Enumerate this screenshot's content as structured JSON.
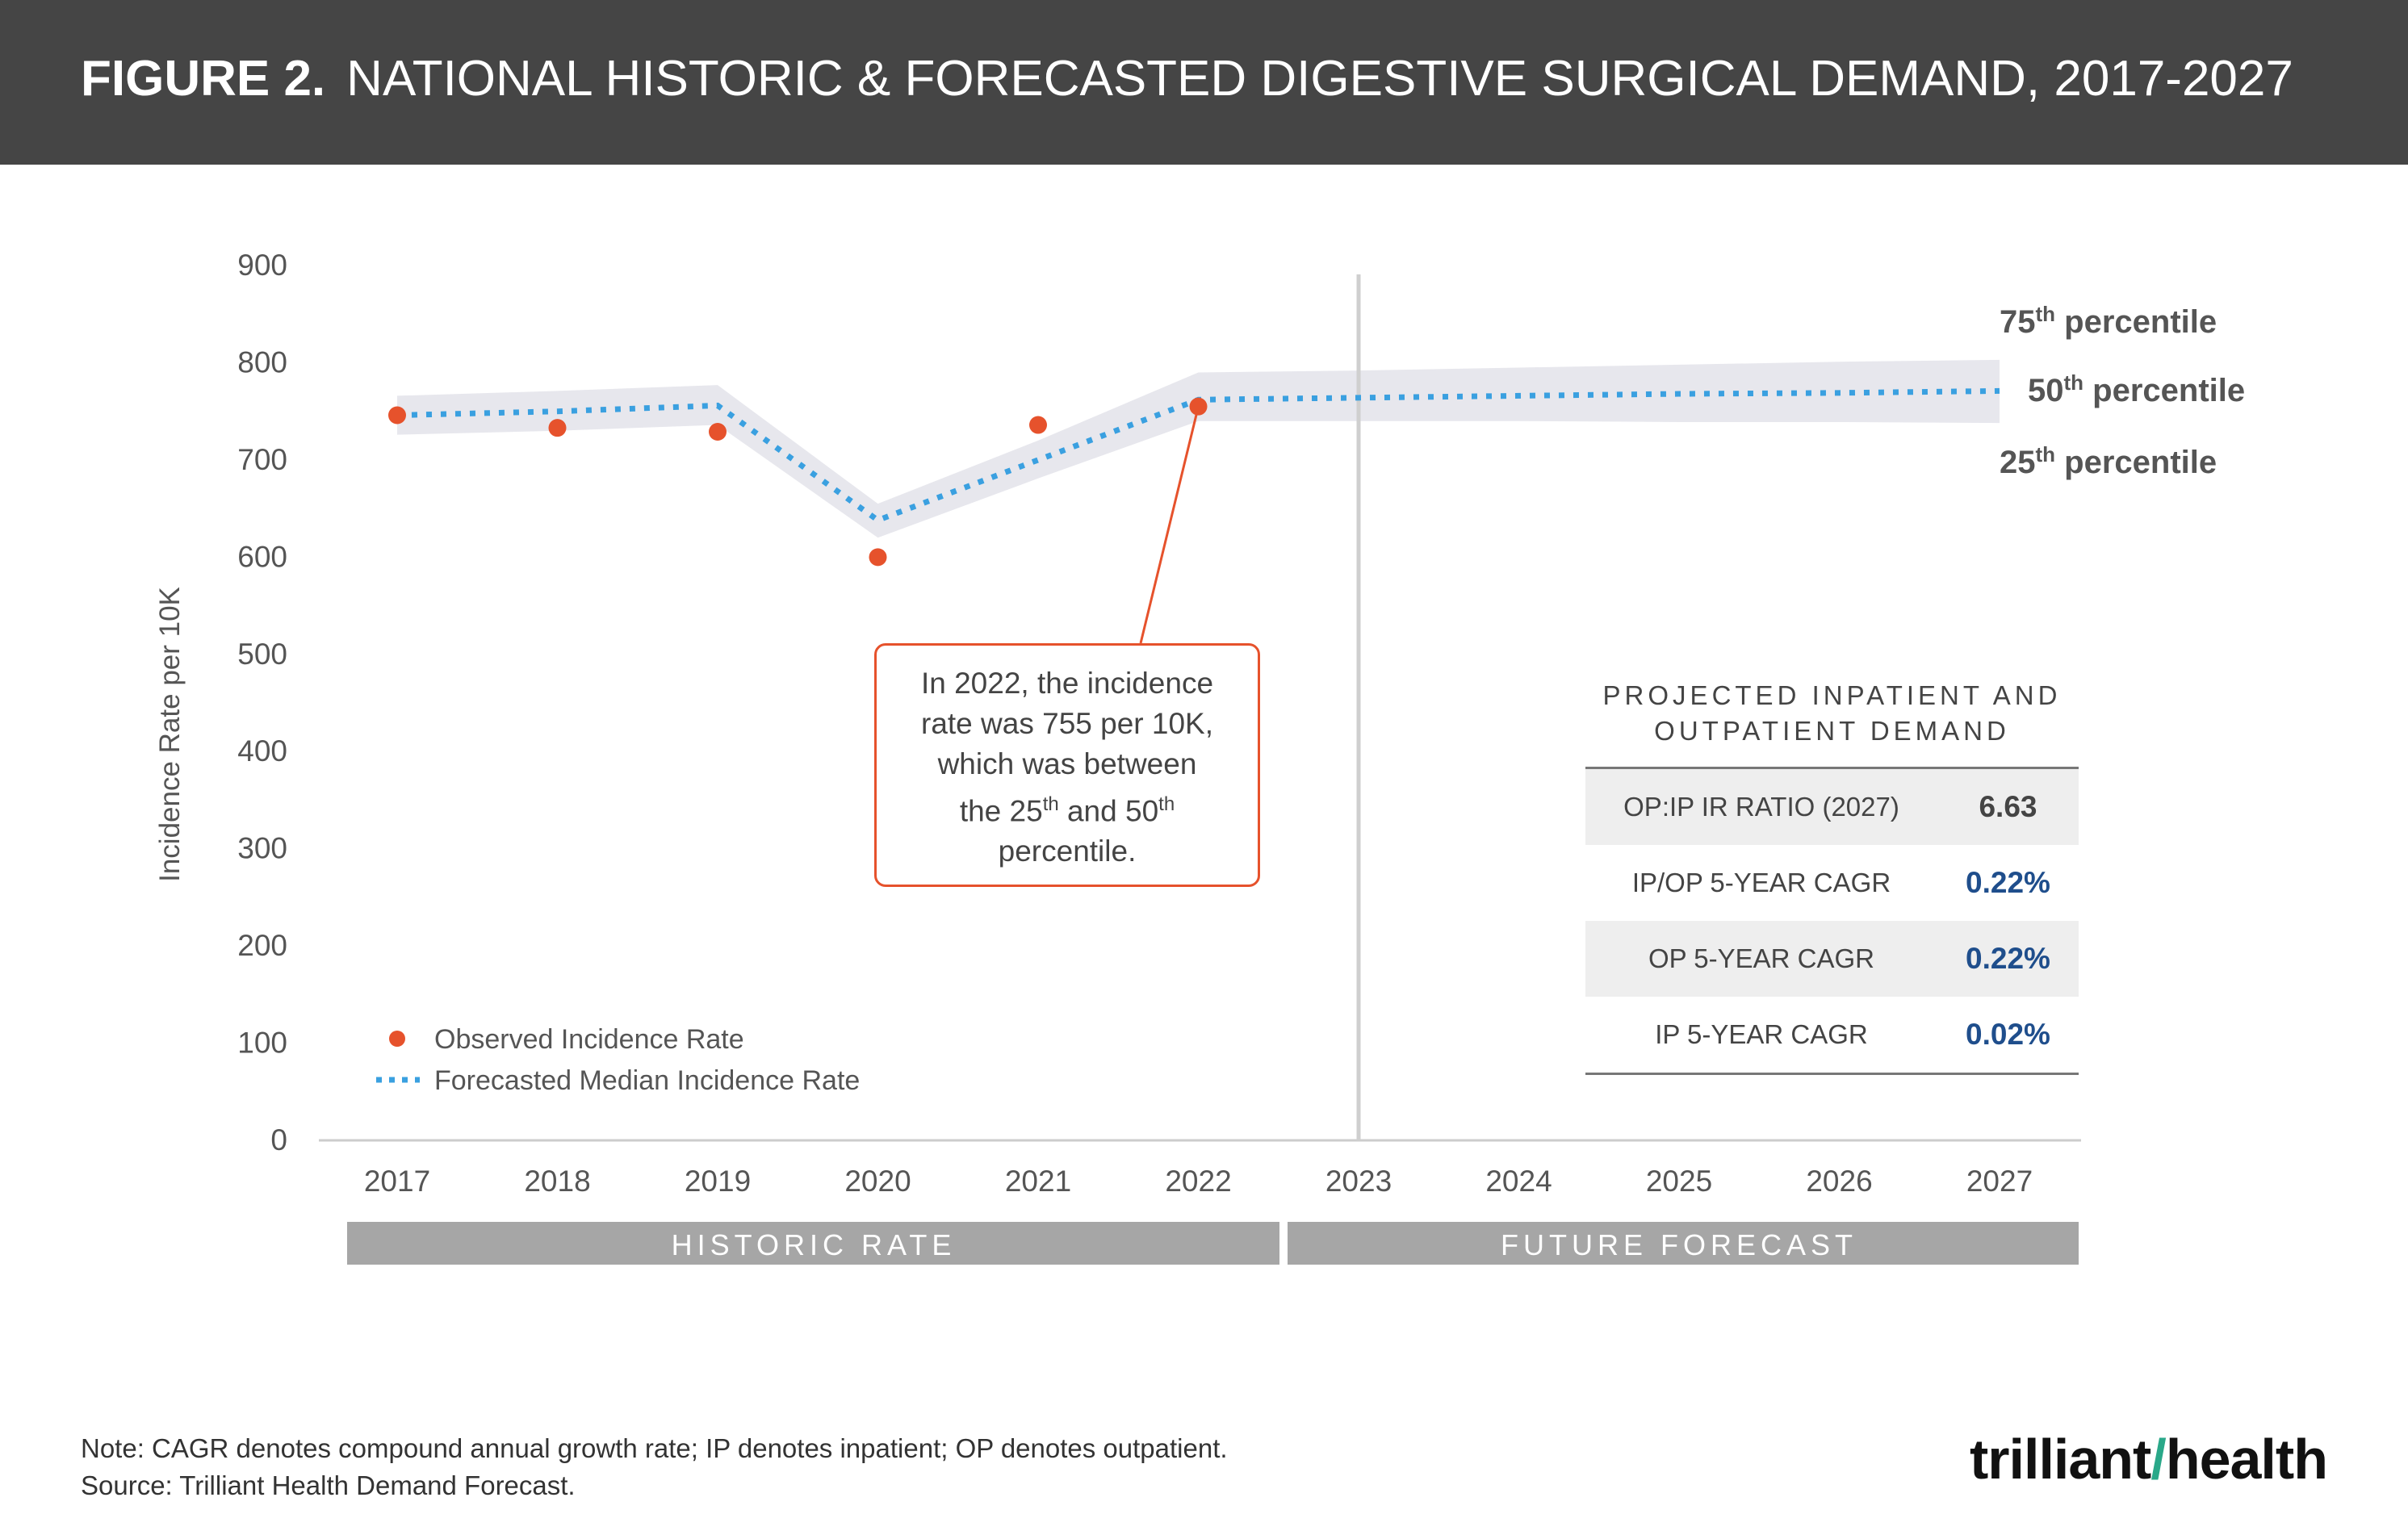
{
  "header": {
    "figure_label": "FIGURE 2.",
    "title": "NATIONAL HISTORIC & FORECASTED DIGESTIVE SURGICAL DEMAND, 2017-2027"
  },
  "chart_data": {
    "type": "line",
    "title": "NATIONAL HISTORIC & FORECASTED DIGESTIVE SURGICAL DEMAND, 2017-2027",
    "ylabel": "Incidence Rate per 10K",
    "xlabel": "",
    "ylim": [
      0,
      900
    ],
    "yticks": [
      "0",
      "100",
      "200",
      "300",
      "400",
      "500",
      "600",
      "700",
      "800",
      "900"
    ],
    "categories": [
      "2017",
      "2018",
      "2019",
      "2020",
      "2021",
      "2022",
      "2023",
      "2024",
      "2025",
      "2026",
      "2027"
    ],
    "series": [
      {
        "name": "Observed Incidence Rate",
        "style": "scatter",
        "color": "#e6522c",
        "values": [
          746,
          733,
          729,
          600,
          736,
          755,
          null,
          null,
          null,
          null,
          null
        ]
      },
      {
        "name": "Forecasted Median Incidence Rate",
        "style": "dotted-line",
        "color": "#3aa0e0",
        "values": [
          746,
          750,
          756,
          638,
          700,
          762,
          764,
          766,
          768,
          769,
          771
        ]
      }
    ],
    "band": {
      "color": "#e7e7ed",
      "upper": [
        766,
        771,
        777,
        655,
        720,
        790,
        792,
        795,
        798,
        801,
        803
      ],
      "lower": [
        726,
        730,
        736,
        620,
        681,
        740,
        740,
        740,
        739,
        739,
        738
      ]
    },
    "percentile_labels": [
      {
        "num": "75",
        "sup": "th",
        "text": " percentile"
      },
      {
        "num": "50",
        "sup": "th",
        "text": " percentile"
      },
      {
        "num": "25",
        "sup": "th",
        "text": " percentile"
      }
    ],
    "divider_year": "2023",
    "period_labels": [
      "HISTORIC RATE",
      "FUTURE FORECAST"
    ],
    "legend_placement": "bottom-left",
    "grid": false
  },
  "callout": {
    "line1": "In 2022, the incidence",
    "line2": "rate was 755 per 10K,",
    "line3": "which was between",
    "line4a": "the 25",
    "line4sup1": "th",
    "line4b": " and 50",
    "line4sup2": "th",
    "line5": "percentile."
  },
  "table": {
    "title_line1": "PROJECTED INPATIENT AND",
    "title_line2": "OUTPATIENT DEMAND",
    "rows": [
      {
        "label": "OP:IP IR RATIO (2027)",
        "value": "6.63",
        "color": "#444444"
      },
      {
        "label": "IP/OP 5-YEAR CAGR",
        "value": "0.22%",
        "color": "#1f4e8c"
      },
      {
        "label": "OP 5-YEAR CAGR",
        "value": "0.22%",
        "color": "#1f4e8c"
      },
      {
        "label": "IP 5-YEAR CAGR",
        "value": "0.02%",
        "color": "#1f4e8c"
      }
    ]
  },
  "notes": {
    "note": "Note: CAGR denotes compound annual growth rate; IP denotes inpatient; OP denotes outpatient.",
    "source": "Source: Trilliant Health Demand Forecast."
  },
  "logo": {
    "part1": "trilliant",
    "part2": "health"
  }
}
